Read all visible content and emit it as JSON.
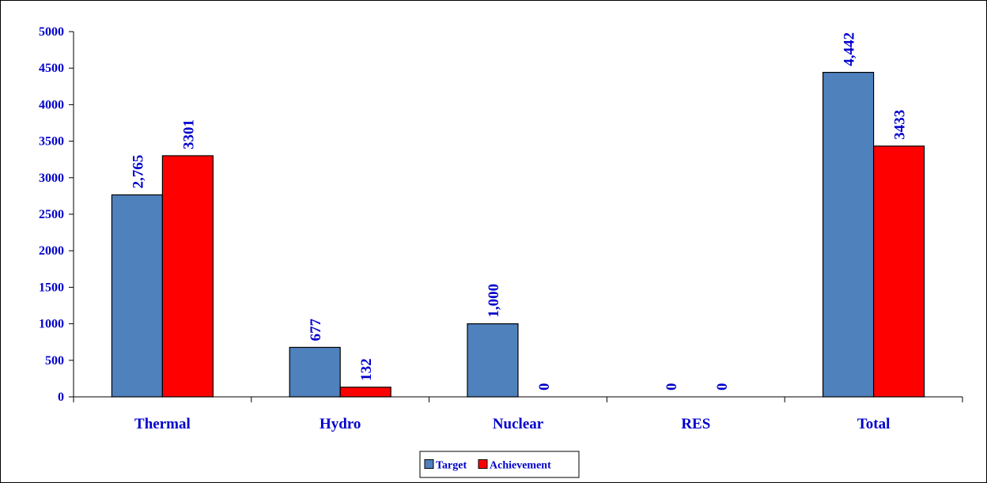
{
  "chart_data": {
    "type": "bar",
    "categories": [
      "Thermal",
      "Hydro",
      "Nuclear",
      "RES",
      "Total"
    ],
    "series": [
      {
        "name": "Target",
        "values": [
          2765,
          677,
          1000,
          0,
          4442
        ],
        "labels": [
          "2,765",
          "677",
          "1,000",
          "0",
          "4,442"
        ],
        "color": "#4f81bd"
      },
      {
        "name": "Achievement",
        "values": [
          3301,
          132,
          0,
          0,
          3433
        ],
        "labels": [
          "3301",
          "132",
          "0",
          "0",
          "3433"
        ],
        "color": "#ff0000"
      }
    ],
    "ylim": [
      0,
      5000
    ],
    "yticks": [
      "0",
      "500",
      "1000",
      "1500",
      "2000",
      "2500",
      "3000",
      "3500",
      "4000",
      "4500",
      "5000"
    ],
    "title": "",
    "xlabel": "",
    "ylabel": "",
    "grid": false,
    "legend_position": "bottom-center",
    "text_color": "#0000cc"
  }
}
